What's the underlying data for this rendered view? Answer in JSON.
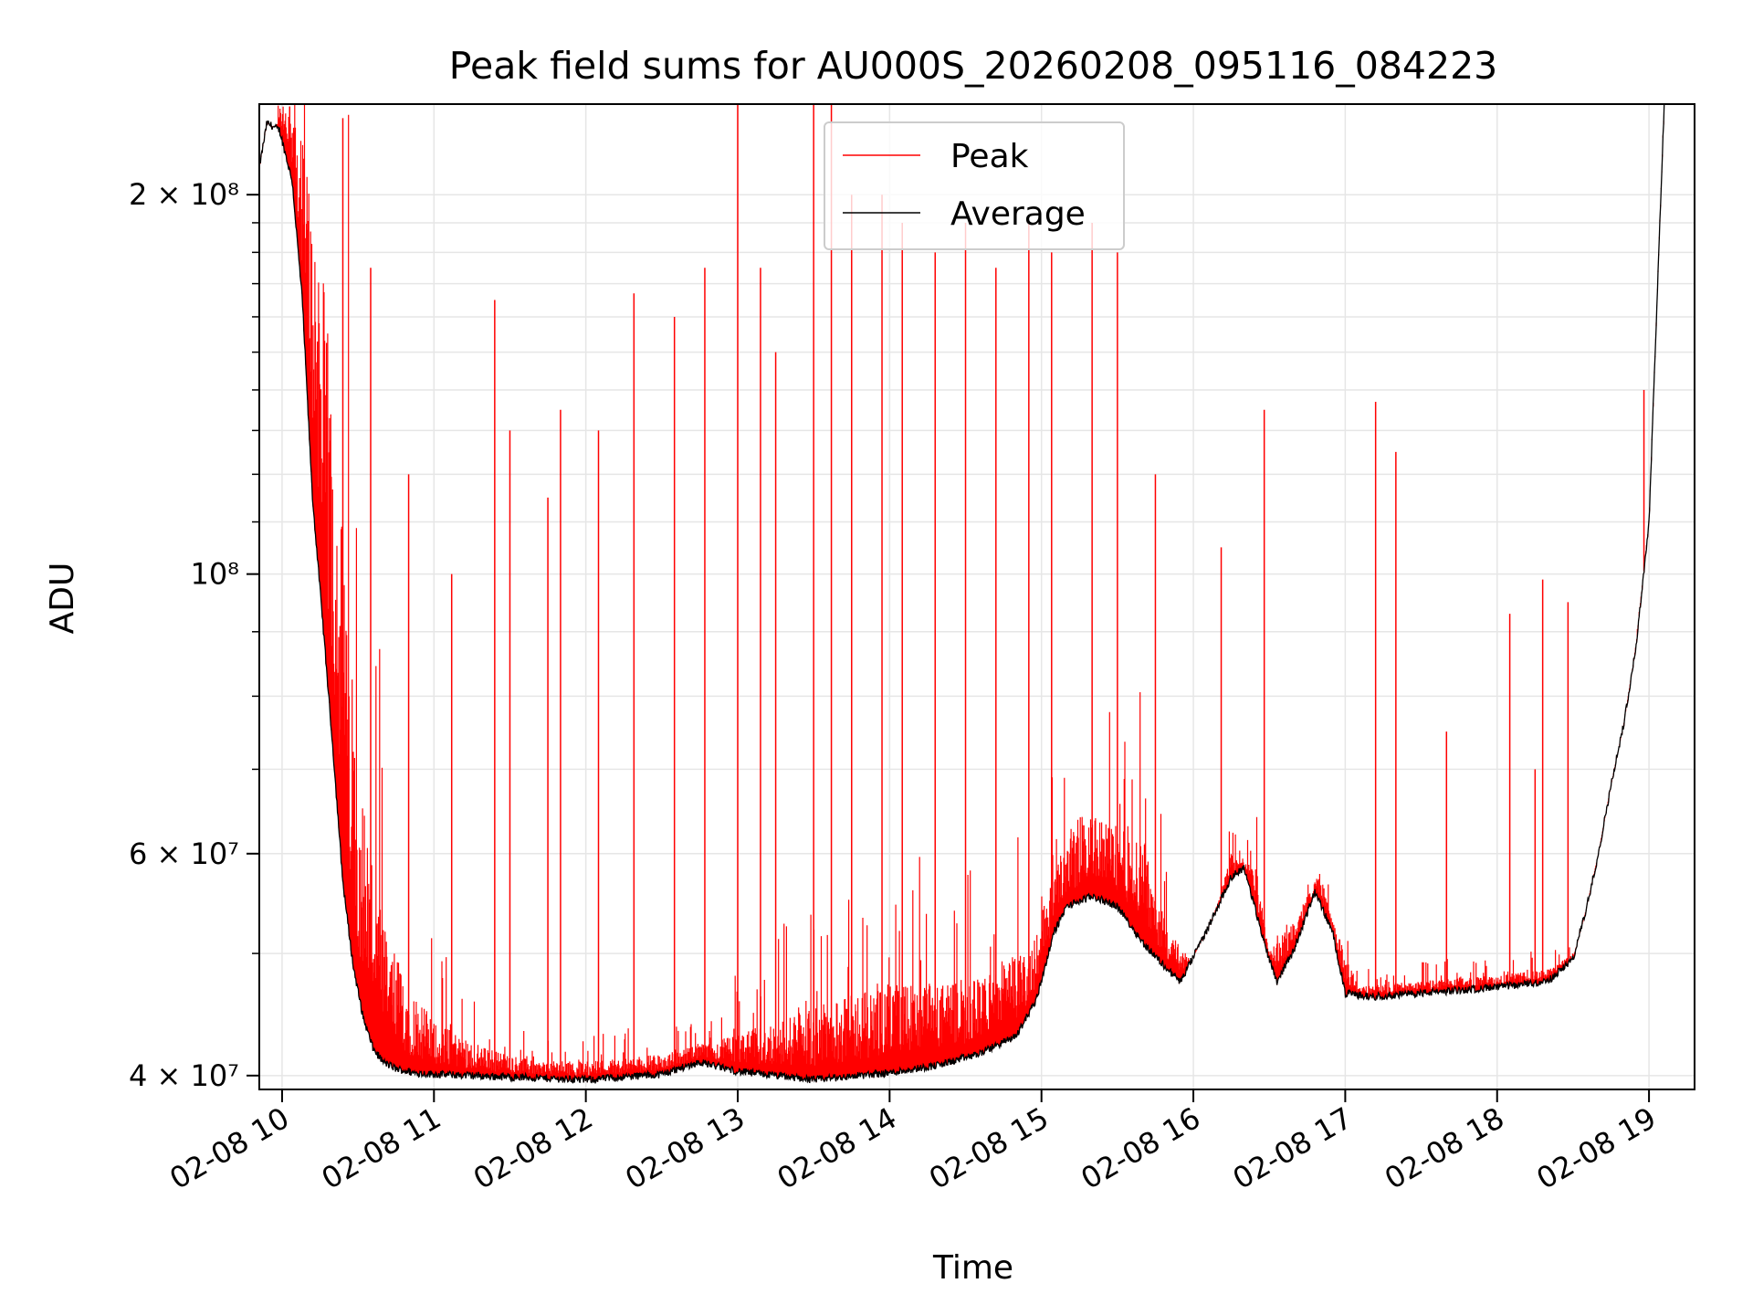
{
  "chart_data": {
    "type": "line",
    "title": "Peak field sums for AU000S_20260208_095116_084223",
    "xlabel": "Time",
    "ylabel": "ADU",
    "yscale": "log",
    "grid": true,
    "legend_position": "upper-center",
    "x_ticks": [
      "02-08 10",
      "02-08 11",
      "02-08 12",
      "02-08 13",
      "02-08 14",
      "02-08 15",
      "02-08 16",
      "02-08 17",
      "02-08 18",
      "02-08 19"
    ],
    "y_ticks": [
      {
        "value": 40000000,
        "label": "4 × 10⁷"
      },
      {
        "value": 60000000,
        "label": "6 × 10⁷"
      },
      {
        "value": 100000000,
        "label": "10⁸"
      },
      {
        "value": 200000000,
        "label": "2 × 10⁸"
      }
    ],
    "xlim": [
      "2026-02-08 09:51",
      "2026-02-08 19:18"
    ],
    "ylim": [
      39000000,
      236000000
    ],
    "series": [
      {
        "name": "Peak",
        "color": "#ff0000",
        "x": [
          "2026-02-08 09:51",
          "2026-02-08 10:00",
          "2026-02-08 10:08",
          "2026-02-08 10:15",
          "2026-02-08 10:22",
          "2026-02-08 10:30",
          "2026-02-08 10:40",
          "2026-02-08 10:50",
          "2026-02-08 11:00",
          "2026-02-08 11:20",
          "2026-02-08 11:40",
          "2026-02-08 12:00",
          "2026-02-08 12:30",
          "2026-02-08 13:00",
          "2026-02-08 13:30",
          "2026-02-08 14:00",
          "2026-02-08 14:30",
          "2026-02-08 14:55",
          "2026-02-08 15:05",
          "2026-02-08 15:15",
          "2026-02-08 15:30",
          "2026-02-08 15:40",
          "2026-02-08 15:50",
          "2026-02-08 16:00",
          "2026-02-08 16:10",
          "2026-02-08 16:15",
          "2026-02-08 16:25",
          "2026-02-08 16:30",
          "2026-02-08 16:40",
          "2026-02-08 16:50",
          "2026-02-08 16:55",
          "2026-02-08 17:05",
          "2026-02-08 17:30",
          "2026-02-08 18:00",
          "2026-02-08 18:20",
          "2026-02-08 18:30",
          "2026-02-08 18:40",
          "2026-02-08 18:50",
          "2026-02-08 19:00",
          "2026-02-08 19:06"
        ],
        "values": [
          210000000,
          235000000,
          220000000,
          180000000,
          120000000,
          70000000,
          52000000,
          47000000,
          44000000,
          42000000,
          41000000,
          41000000,
          41500000,
          43000000,
          45000000,
          47000000,
          47000000,
          50000000,
          58000000,
          64000000,
          63000000,
          62000000,
          52000000,
          49000000,
          55000000,
          60000000,
          58000000,
          50000000,
          53000000,
          58000000,
          53000000,
          47000000,
          47500000,
          48000000,
          48500000,
          50000000,
          55000000,
          72000000,
          110000000,
          236000000
        ],
        "spikes": [
          {
            "x": "2026-02-08 10:03",
            "value": 235000000
          },
          {
            "x": "2026-02-08 10:24",
            "value": 230000000
          },
          {
            "x": "2026-02-08 10:35",
            "value": 175000000
          },
          {
            "x": "2026-02-08 10:50",
            "value": 120000000
          },
          {
            "x": "2026-02-08 11:07",
            "value": 100000000
          },
          {
            "x": "2026-02-08 11:24",
            "value": 165000000
          },
          {
            "x": "2026-02-08 11:30",
            "value": 130000000
          },
          {
            "x": "2026-02-08 11:45",
            "value": 115000000
          },
          {
            "x": "2026-02-08 11:50",
            "value": 135000000
          },
          {
            "x": "2026-02-08 12:05",
            "value": 130000000
          },
          {
            "x": "2026-02-08 12:19",
            "value": 167000000
          },
          {
            "x": "2026-02-08 12:35",
            "value": 160000000
          },
          {
            "x": "2026-02-08 12:47",
            "value": 175000000
          },
          {
            "x": "2026-02-08 13:00",
            "value": 236000000
          },
          {
            "x": "2026-02-08 13:09",
            "value": 175000000
          },
          {
            "x": "2026-02-08 13:15",
            "value": 150000000
          },
          {
            "x": "2026-02-08 13:30",
            "value": 236000000
          },
          {
            "x": "2026-02-08 13:37",
            "value": 236000000
          },
          {
            "x": "2026-02-08 13:45",
            "value": 200000000
          },
          {
            "x": "2026-02-08 13:57",
            "value": 200000000
          },
          {
            "x": "2026-02-08 14:05",
            "value": 190000000
          },
          {
            "x": "2026-02-08 14:18",
            "value": 180000000
          },
          {
            "x": "2026-02-08 14:30",
            "value": 190000000
          },
          {
            "x": "2026-02-08 14:42",
            "value": 175000000
          },
          {
            "x": "2026-02-08 14:55",
            "value": 190000000
          },
          {
            "x": "2026-02-08 15:04",
            "value": 180000000
          },
          {
            "x": "2026-02-08 15:20",
            "value": 190000000
          },
          {
            "x": "2026-02-08 15:30",
            "value": 180000000
          },
          {
            "x": "2026-02-08 15:45",
            "value": 120000000
          },
          {
            "x": "2026-02-08 16:11",
            "value": 105000000
          },
          {
            "x": "2026-02-08 16:28",
            "value": 135000000
          },
          {
            "x": "2026-02-08 17:12",
            "value": 137000000
          },
          {
            "x": "2026-02-08 17:20",
            "value": 125000000
          },
          {
            "x": "2026-02-08 17:40",
            "value": 75000000
          },
          {
            "x": "2026-02-08 18:05",
            "value": 93000000
          },
          {
            "x": "2026-02-08 18:15",
            "value": 70000000
          },
          {
            "x": "2026-02-08 18:18",
            "value": 99000000
          },
          {
            "x": "2026-02-08 18:28",
            "value": 95000000
          },
          {
            "x": "2026-02-08 18:58",
            "value": 140000000
          }
        ]
      },
      {
        "name": "Average",
        "color": "#000000",
        "x": [
          "2026-02-08 09:51",
          "2026-02-08 09:54",
          "2026-02-08 09:59",
          "2026-02-08 10:04",
          "2026-02-08 10:08",
          "2026-02-08 10:12",
          "2026-02-08 10:16",
          "2026-02-08 10:20",
          "2026-02-08 10:24",
          "2026-02-08 10:28",
          "2026-02-08 10:32",
          "2026-02-08 10:36",
          "2026-02-08 10:40",
          "2026-02-08 10:45",
          "2026-02-08 10:52",
          "2026-02-08 11:00",
          "2026-02-08 11:30",
          "2026-02-08 12:00",
          "2026-02-08 12:30",
          "2026-02-08 12:45",
          "2026-02-08 13:00",
          "2026-02-08 13:30",
          "2026-02-08 14:00",
          "2026-02-08 14:20",
          "2026-02-08 14:35",
          "2026-02-08 14:50",
          "2026-02-08 14:58",
          "2026-02-08 15:05",
          "2026-02-08 15:10",
          "2026-02-08 15:20",
          "2026-02-08 15:30",
          "2026-02-08 15:40",
          "2026-02-08 15:50",
          "2026-02-08 15:55",
          "2026-02-08 16:05",
          "2026-02-08 16:15",
          "2026-02-08 16:20",
          "2026-02-08 16:28",
          "2026-02-08 16:33",
          "2026-02-08 16:40",
          "2026-02-08 16:48",
          "2026-02-08 16:55",
          "2026-02-08 17:00",
          "2026-02-08 17:10",
          "2026-02-08 17:30",
          "2026-02-08 18:00",
          "2026-02-08 18:20",
          "2026-02-08 18:30",
          "2026-02-08 18:35",
          "2026-02-08 18:40",
          "2026-02-08 18:45",
          "2026-02-08 18:50",
          "2026-02-08 18:55",
          "2026-02-08 19:00",
          "2026-02-08 19:06"
        ],
        "values": [
          210000000,
          228000000,
          225000000,
          205000000,
          165000000,
          115000000,
          92000000,
          73000000,
          57000000,
          49000000,
          44500000,
          42000000,
          41000000,
          40500000,
          40200000,
          40100000,
          39900000,
          39700000,
          40100000,
          41000000,
          40300000,
          39700000,
          40200000,
          40800000,
          41600000,
          43000000,
          46000000,
          52000000,
          54500000,
          55500000,
          54500000,
          51000000,
          48500000,
          47500000,
          52000000,
          57500000,
          58500000,
          51000000,
          47500000,
          50500000,
          56000000,
          52000000,
          46500000,
          46200000,
          46500000,
          47000000,
          47500000,
          49500000,
          54000000,
          60000000,
          68000000,
          76000000,
          88000000,
          110000000,
          236000000
        ]
      }
    ]
  }
}
